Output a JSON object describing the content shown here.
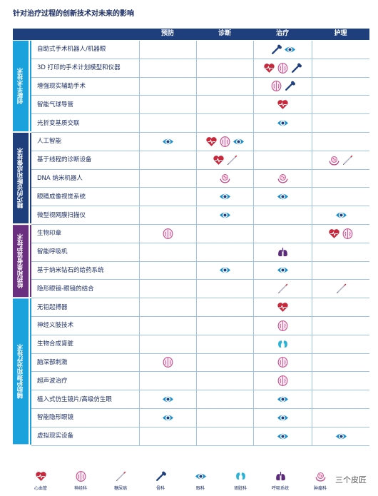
{
  "title": "针对治疗过程的创新技术对未来的影响",
  "table": {
    "headers": [
      "预防",
      "诊断",
      "治疗",
      "护理"
    ],
    "groups": [
      {
        "label": "创新手术技术",
        "rows": [
          "自助式手术机器人/机器眼",
          "3D 打印的手术计划模型和仪器",
          "增强现实辅助手术",
          "智能气球导管",
          "光折变基质交联"
        ]
      },
      {
        "label": "精巧的诊断和成像技术",
        "rows": [
          "人工智能",
          "基于线程的诊断设备",
          "DNA 纳米机器人",
          "眼睛成像视觉系统",
          "微型视网膜扫描仪"
        ]
      },
      {
        "label": "给药和患者监护技术",
        "rows": [
          "生物印章",
          "智能呼吸机",
          "基于纳米钻石的给药系统",
          "隐形眼镜-眼镜的结合"
        ]
      },
      {
        "label": "辅助护理和治疗技术",
        "rows": [
          "无铅起搏器",
          "神经义肢技术",
          "生物合成肾脏",
          "脑深部刺激",
          "超声波治疗",
          "植入式仿生镜片/高级仿生眼",
          "智能隐形眼镜",
          "虚拟现实设备"
        ]
      }
    ]
  },
  "legend": [
    "心血管",
    "神经科",
    "糖尿病",
    "骨科",
    "眼科",
    "肾脏科",
    "呼吸系统",
    "肿瘤科"
  ],
  "watermark": "三个皮匠"
}
